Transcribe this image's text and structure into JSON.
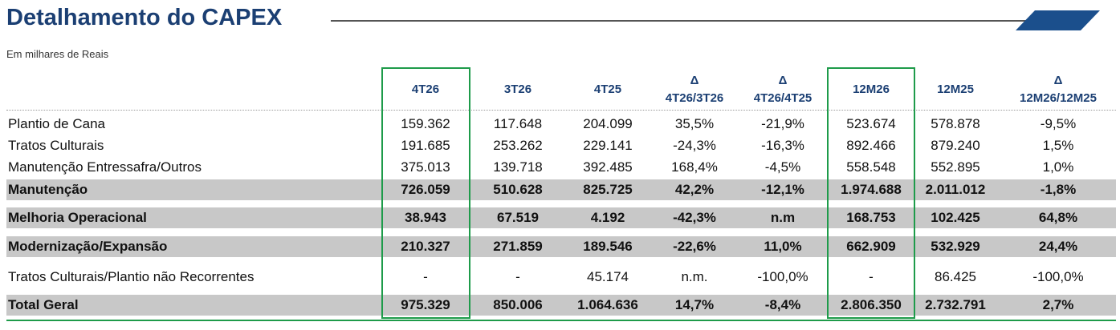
{
  "header": {
    "title": "Detalhamento do CAPEX",
    "subtitle": "Em milhares de Reais"
  },
  "table": {
    "columns": [
      [
        "4T26"
      ],
      [
        "3T26"
      ],
      [
        "4T25"
      ],
      [
        "Δ",
        "4T26/3T26"
      ],
      [
        "Δ",
        "4T26/4T25"
      ],
      [
        "12M26"
      ],
      [
        "12M25"
      ],
      [
        "Δ",
        "12M26/12M25"
      ]
    ],
    "rows": [
      {
        "label": "Plantio de Cana",
        "cells": [
          "159.362",
          "117.648",
          "204.099",
          "35,5%",
          "-21,9%",
          "523.674",
          "578.878",
          "-9,5%"
        ]
      },
      {
        "label": "Tratos Culturais",
        "cells": [
          "191.685",
          "253.262",
          "229.141",
          "-24,3%",
          "-16,3%",
          "892.466",
          "879.240",
          "1,5%"
        ]
      },
      {
        "label": "Manutenção Entressafra/Outros",
        "cells": [
          "375.013",
          "139.718",
          "392.485",
          "168,4%",
          "-4,5%",
          "558.548",
          "552.895",
          "1,0%"
        ]
      },
      {
        "label": "Manutenção",
        "cells": [
          "726.059",
          "510.628",
          "825.725",
          "42,2%",
          "-12,1%",
          "1.974.688",
          "2.011.012",
          "-1,8%"
        ]
      },
      {
        "label": "Melhoria Operacional",
        "cells": [
          "38.943",
          "67.519",
          "4.192",
          "-42,3%",
          "n.m",
          "168.753",
          "102.425",
          "64,8%"
        ]
      },
      {
        "label": "Modernização/Expansão",
        "cells": [
          "210.327",
          "271.859",
          "189.546",
          "-22,6%",
          "11,0%",
          "662.909",
          "532.929",
          "24,4%"
        ]
      },
      {
        "label": "Tratos Culturais/Plantio não Recorrentes",
        "cells": [
          "-",
          "-",
          "45.174",
          "n.m.",
          "-100,0%",
          "-",
          "86.425",
          "-100,0%"
        ]
      },
      {
        "label": "Total Geral",
        "cells": [
          "975.329",
          "850.006",
          "1.064.636",
          "14,7%",
          "-8,4%",
          "2.806.350",
          "2.732.791",
          "2,7%"
        ]
      }
    ]
  }
}
